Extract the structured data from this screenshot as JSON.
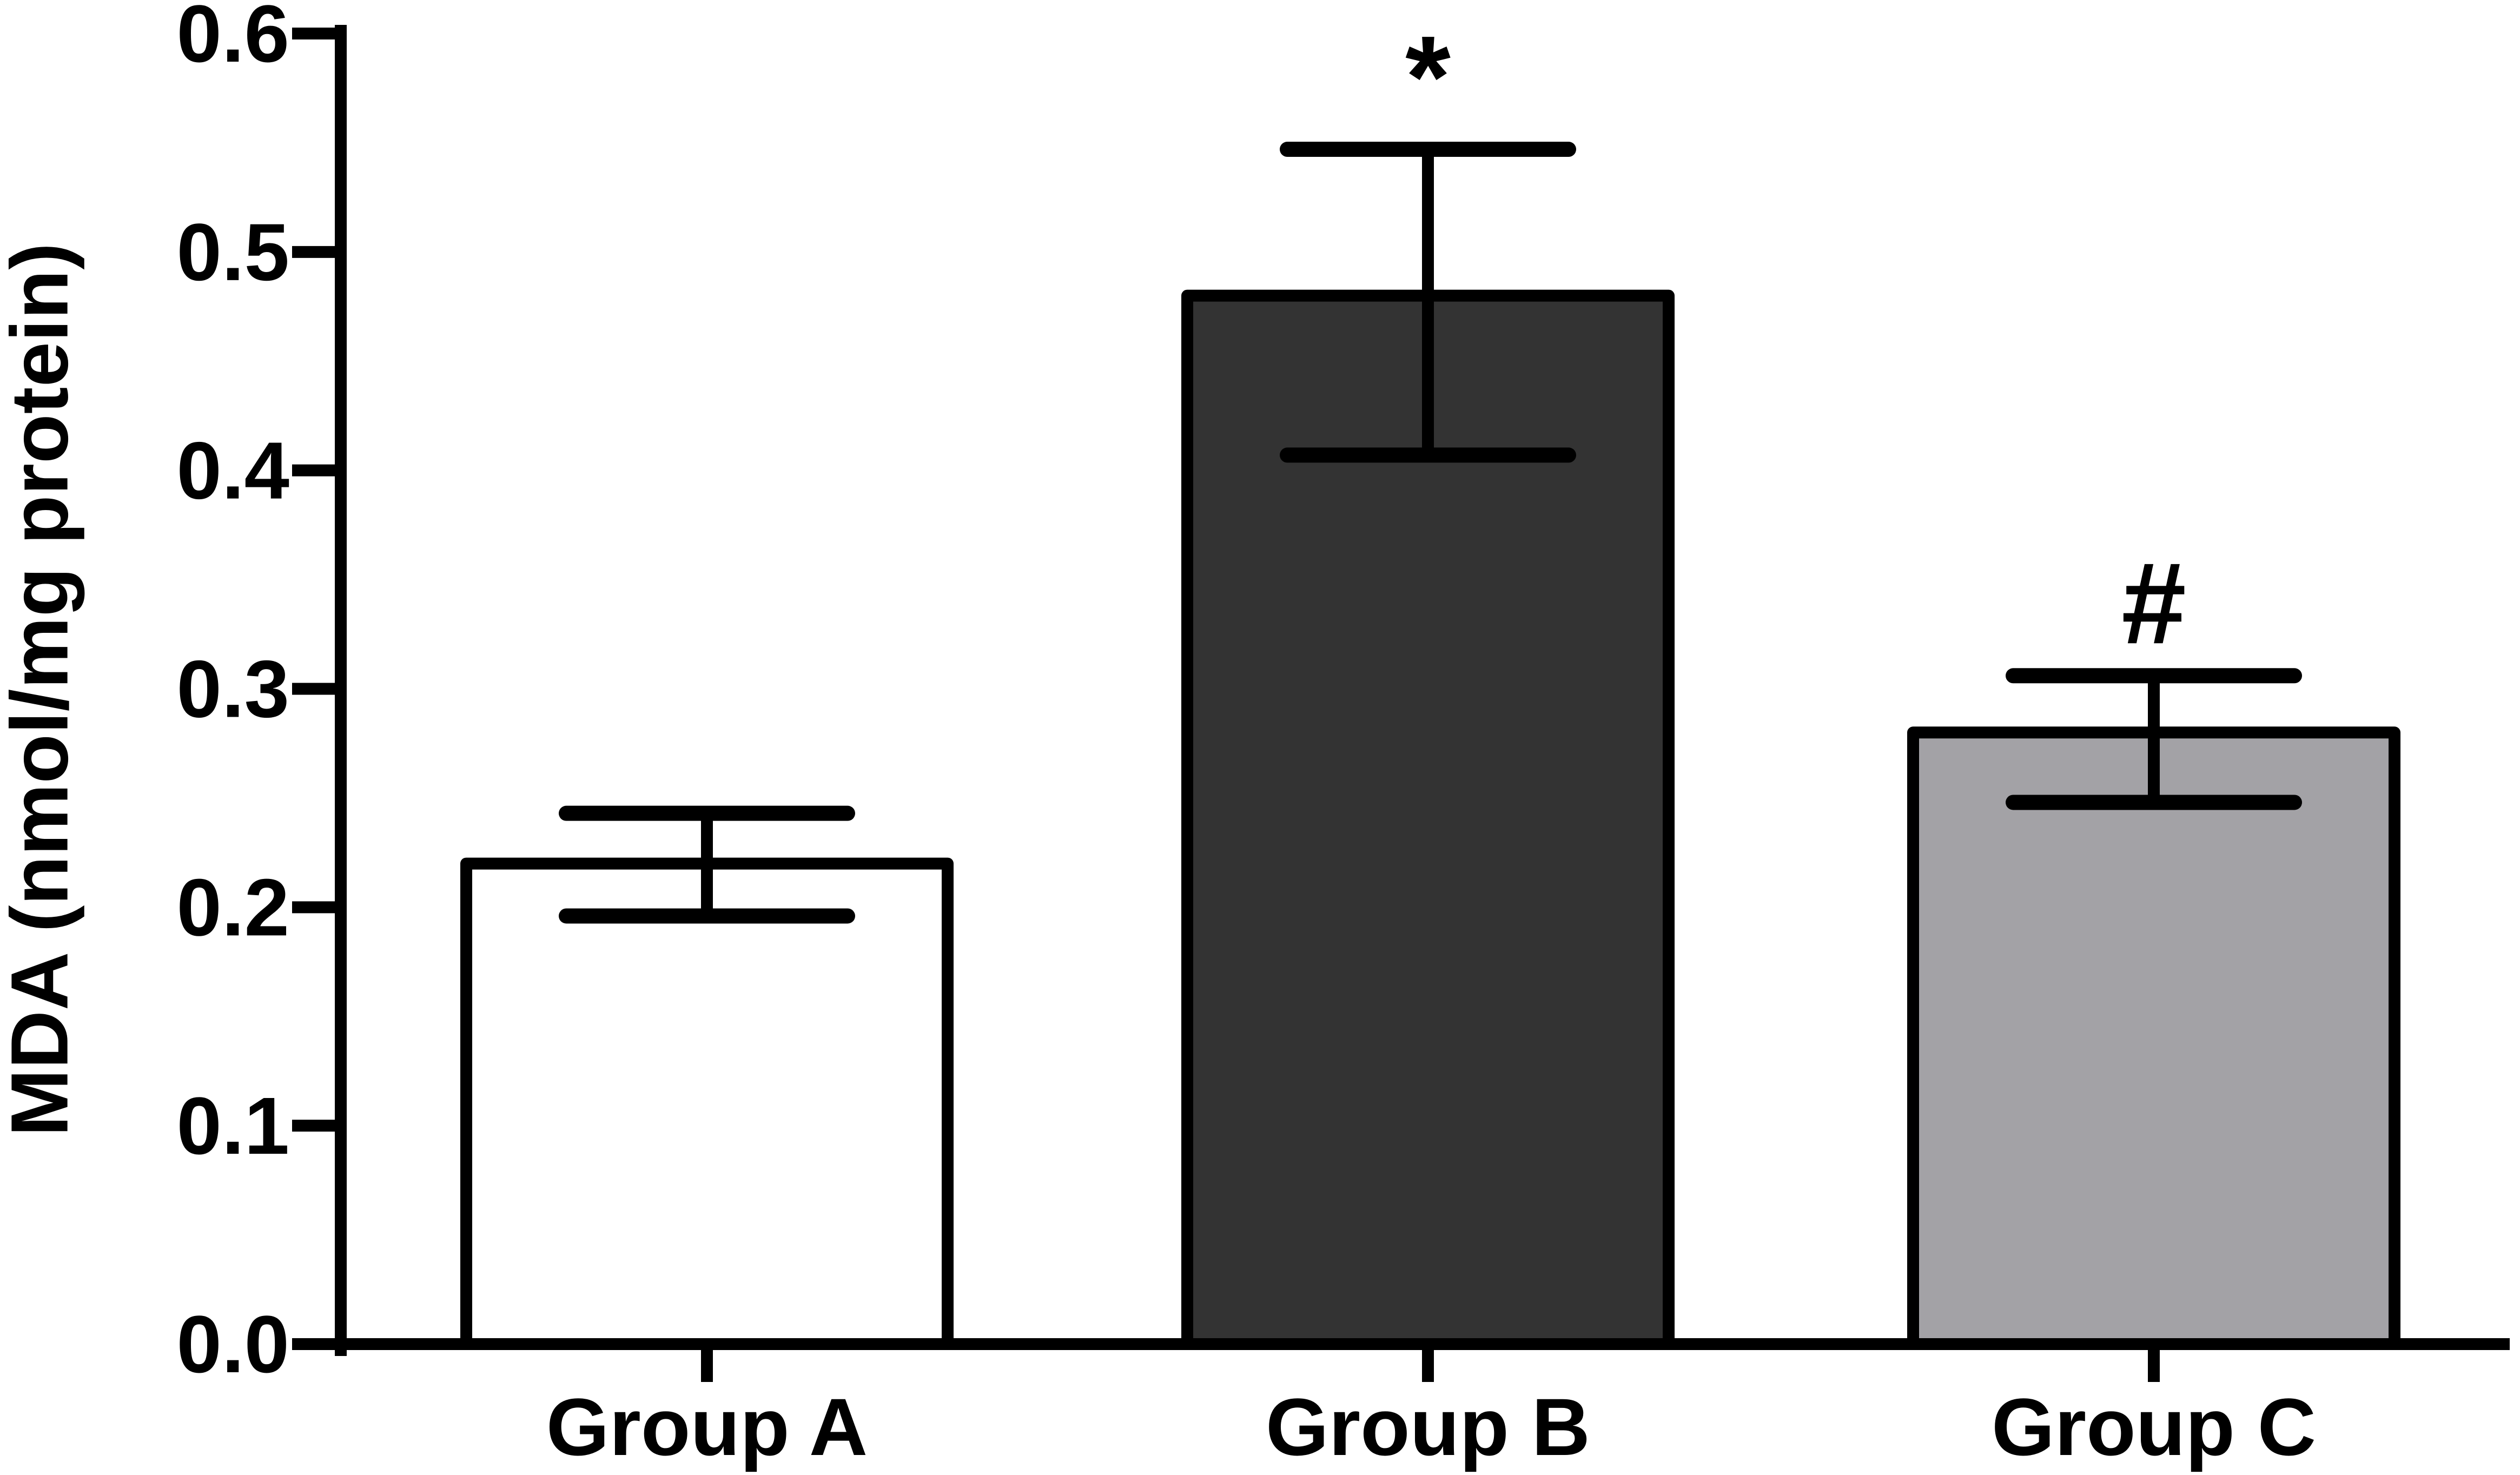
{
  "chart_data": {
    "type": "bar",
    "title": "",
    "xlabel": "",
    "ylabel": "MDA (nmol/mg protein)",
    "ylim": [
      0,
      0.6
    ],
    "yticks": [
      "0.0",
      "0.1",
      "0.2",
      "0.3",
      "0.4",
      "0.5",
      "0.6"
    ],
    "categories": [
      "Group A",
      "Group B",
      "Group C"
    ],
    "values": [
      0.22,
      0.48,
      0.28
    ],
    "error_upper": [
      0.243,
      0.547,
      0.306
    ],
    "error_lower": [
      0.196,
      0.407,
      0.248
    ],
    "annotations": [
      "",
      "*",
      "#"
    ],
    "bar_colors": [
      "#ffffff",
      "#333333",
      "#a3a2a6"
    ],
    "grid": false
  }
}
